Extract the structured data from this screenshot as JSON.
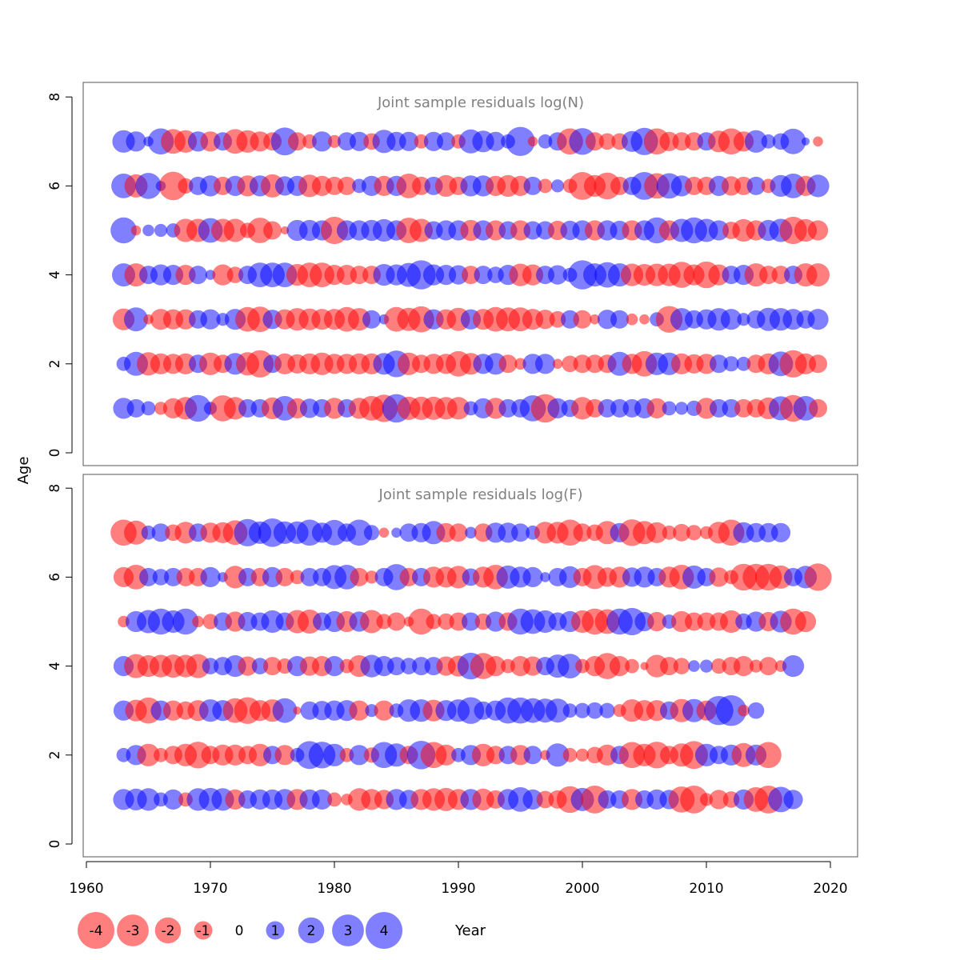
{
  "colors": {
    "positive": "#0000ff",
    "negative": "#ff0000",
    "frame": "#555555",
    "title": "#808080",
    "text": "#000000"
  },
  "ylabel": "Age",
  "xlabel": "Year",
  "x_ticks": [
    1960,
    1970,
    1980,
    1990,
    2000,
    2010,
    2020
  ],
  "y_ticks": [
    0,
    2,
    4,
    6,
    8
  ],
  "legend": {
    "values": [
      -4,
      -3,
      -2,
      -1,
      0,
      1,
      2,
      3,
      4
    ],
    "labels": [
      "-4",
      "-3",
      "-2",
      "-1",
      "0",
      "1",
      "2",
      "3",
      "4"
    ]
  },
  "chart_data": [
    {
      "type": "scatter",
      "title": "Joint sample residuals log(N)",
      "xlim": [
        1960,
        2022
      ],
      "ylim": [
        0,
        8
      ],
      "ages": [
        1,
        2,
        3,
        4,
        5,
        6,
        7
      ],
      "years": [
        1963,
        1964,
        1965,
        1966,
        1967,
        1968,
        1969,
        1970,
        1971,
        1972,
        1973,
        1974,
        1975,
        1976,
        1977,
        1978,
        1979,
        1980,
        1981,
        1982,
        1983,
        1984,
        1985,
        1986,
        1987,
        1988,
        1989,
        1990,
        1991,
        1992,
        1993,
        1994,
        1995,
        1996,
        1997,
        1998,
        1999,
        2000,
        2001,
        2002,
        2003,
        2004,
        2005,
        2006,
        2007,
        2008,
        2009,
        2010,
        2011,
        2012,
        2013,
        2014,
        2015,
        2016,
        2017,
        2018,
        2019
      ],
      "residuals": {
        "7": [
          1.5,
          1.2,
          0.3,
          2.0,
          -1.8,
          -1.5,
          1.2,
          -1.2,
          1.0,
          -1.8,
          -1.5,
          -1.2,
          -1.0,
          2.3,
          -1.0,
          -0.6,
          1.2,
          -0.5,
          1.0,
          1.1,
          -0.8,
          1.6,
          1.1,
          1.1,
          -0.6,
          1.1,
          1.0,
          -0.6,
          1.7,
          1.4,
          1.1,
          0.6,
          2.5,
          -0.3,
          0.6,
          1.0,
          -2.0,
          2.1,
          -1.0,
          -0.8,
          -0.8,
          1.3,
          2.2,
          -2.0,
          -1.1,
          -1.0,
          -1.0,
          1.0,
          -1.4,
          -2.0,
          -1.2,
          1.5,
          0.6,
          0.8,
          1.9,
          0.2,
          -0.3
        ],
        "6": [
          1.8,
          -1.6,
          2.0,
          0.3,
          -2.4,
          -0.7,
          1.0,
          1.3,
          -1.0,
          1.2,
          -1.3,
          1.3,
          -1.6,
          1.1,
          1.2,
          -1.5,
          -1.2,
          -1.0,
          -1.0,
          0.6,
          1.2,
          -1.2,
          1.2,
          -1.8,
          -1.0,
          1.0,
          -1.4,
          -1.0,
          1.3,
          1.3,
          -1.2,
          -1.4,
          -1.2,
          1.0,
          -0.6,
          0.5,
          -0.6,
          -2.3,
          -1.4,
          -2.1,
          -1.0,
          1.0,
          2.3,
          -1.9,
          1.9,
          1.3,
          -1.0,
          -1.0,
          1.2,
          -1.1,
          -1.0,
          1.0,
          -0.6,
          1.4,
          1.8,
          -1.2,
          1.5
        ],
        "5": [
          2.0,
          -0.3,
          0.4,
          0.5,
          0.6,
          -1.6,
          -1.6,
          1.8,
          -1.6,
          -1.6,
          -0.7,
          -1.9,
          -1.0,
          -0.2,
          1.3,
          1.3,
          1.2,
          -2.2,
          1.2,
          1.2,
          1.3,
          1.5,
          1.2,
          -1.9,
          -1.6,
          1.0,
          1.2,
          1.2,
          -1.3,
          1.2,
          -1.2,
          1.0,
          -1.2,
          1.0,
          1.0,
          -1.1,
          1.1,
          1.2,
          -1.2,
          1.2,
          1.1,
          -1.2,
          1.2,
          2.0,
          -1.2,
          1.6,
          2.0,
          1.6,
          1.2,
          -0.9,
          -1.5,
          -1.2,
          1.3,
          1.6,
          -2.2,
          -1.5,
          -1.2
        ],
        "4": [
          1.6,
          -1.6,
          1.0,
          1.3,
          1.2,
          -1.2,
          1.0,
          0.3,
          -1.3,
          -0.8,
          1.0,
          1.8,
          1.8,
          1.8,
          -1.4,
          -1.8,
          -1.8,
          -1.2,
          -1.2,
          -1.0,
          -1.0,
          1.4,
          1.3,
          1.7,
          2.5,
          1.3,
          1.2,
          1.1,
          -1.0,
          1.0,
          0.8,
          1.2,
          -1.5,
          -1.3,
          1.0,
          1.1,
          0.6,
          2.5,
          1.6,
          1.9,
          1.6,
          -1.5,
          -1.4,
          -1.5,
          -1.5,
          -2.0,
          -1.3,
          -2.1,
          -1.3,
          1.0,
          1.2,
          -1.6,
          -1.0,
          -1.0,
          1.0,
          -1.6,
          -1.6
        ],
        "3": [
          -1.4,
          1.7,
          -0.3,
          -1.3,
          -1.2,
          -1.2,
          1.0,
          1.2,
          0.5,
          1.3,
          -1.8,
          -1.9,
          1.1,
          -1.2,
          -1.5,
          -1.4,
          -1.3,
          -1.3,
          -1.8,
          -1.5,
          1.0,
          0.3,
          -1.8,
          -1.6,
          -2.0,
          1.2,
          -1.2,
          -1.6,
          1.2,
          -1.3,
          -1.8,
          -1.7,
          -1.7,
          -1.3,
          -1.1,
          -0.8,
          1.0,
          -1.0,
          -0.3,
          1.1,
          1.0,
          -0.4,
          -0.3,
          0.6,
          -2.1,
          1.5,
          1.0,
          1.2,
          1.5,
          1.3,
          0.5,
          1.0,
          1.6,
          1.5,
          1.3,
          1.0,
          1.3
        ],
        "2": [
          0.6,
          1.7,
          -1.6,
          -1.3,
          -1.2,
          -1.3,
          1.0,
          -1.5,
          -1.0,
          1.4,
          -1.6,
          -2.2,
          1.0,
          -1.3,
          -1.1,
          -1.3,
          -1.5,
          -1.2,
          -1.2,
          -1.3,
          -1.3,
          1.4,
          2.1,
          -1.5,
          -1.0,
          -1.2,
          -1.2,
          -1.9,
          -1.4,
          1.2,
          1.4,
          -1.0,
          -0.4,
          1.2,
          1.2,
          -0.3,
          -0.8,
          -1.0,
          -1.0,
          -1.0,
          1.7,
          -1.2,
          -1.9,
          1.5,
          1.5,
          -1.3,
          -1.1,
          -1.2,
          1.0,
          0.7,
          0.6,
          -1.0,
          -1.3,
          1.8,
          -2.2,
          -1.3,
          -1.0
        ],
        "1": [
          1.3,
          1.0,
          0.6,
          -0.5,
          -1.2,
          -1.5,
          2.1,
          0.5,
          -2.0,
          -1.5,
          1.0,
          1.0,
          -1.4,
          1.8,
          -1.2,
          1.1,
          1.0,
          -1.3,
          1.0,
          -1.3,
          -1.8,
          -2.2,
          2.4,
          -1.6,
          -1.6,
          -1.6,
          -1.5,
          -1.5,
          0.6,
          1.2,
          -1.3,
          1.0,
          1.0,
          2.0,
          -2.4,
          1.2,
          0.9,
          -1.5,
          -1.0,
          1.0,
          1.0,
          1.0,
          1.2,
          -1.2,
          0.6,
          0.5,
          0.7,
          -1.3,
          1.0,
          1.0,
          -1.0,
          -1.0,
          -1.4,
          1.7,
          -2.1,
          1.8,
          -1.0
        ]
      }
    },
    {
      "type": "scatter",
      "title": "Joint sample residuals log(F)",
      "xlim": [
        1960,
        2022
      ],
      "ylim": [
        0,
        8
      ],
      "ages": [
        1,
        2,
        3,
        4,
        5,
        6,
        7
      ],
      "years": [
        1963,
        1964,
        1965,
        1966,
        1967,
        1968,
        1969,
        1970,
        1971,
        1972,
        1973,
        1974,
        1975,
        1976,
        1977,
        1978,
        1979,
        1980,
        1981,
        1982,
        1983,
        1984,
        1985,
        1986,
        1987,
        1988,
        1989,
        1990,
        1991,
        1992,
        1993,
        1994,
        1995,
        1996,
        1997,
        1998,
        1999,
        2000,
        2001,
        2002,
        2003,
        2004,
        2005,
        2006,
        2007,
        2008,
        2009,
        2010,
        2011,
        2012,
        2013,
        2014,
        2015,
        2016,
        2017,
        2018,
        2019
      ],
      "residuals": {
        "7": [
          -2.0,
          -1.7,
          0.6,
          1.0,
          -0.8,
          -1.4,
          1.0,
          -1.2,
          -1.3,
          -1.8,
          2.2,
          1.5,
          2.4,
          1.5,
          1.5,
          2.0,
          1.2,
          1.9,
          1.0,
          2.0,
          0.7,
          -0.3,
          0.3,
          1.0,
          1.1,
          1.6,
          -1.1,
          -1.0,
          0.4,
          -1.0,
          1.2,
          1.2,
          1.0,
          0.6,
          -1.4,
          -1.4,
          -2.0,
          -1.0,
          -0.8,
          -1.6,
          1.1,
          -2.1,
          -1.6,
          -1.3,
          -0.6,
          -0.9,
          -0.7,
          -0.5,
          -1.4,
          -2.0,
          1.3,
          1.1,
          1.1,
          1.1
        ],
        "6": [
          -1.2,
          -1.8,
          1.0,
          0.8,
          1.0,
          -1.0,
          -1.0,
          1.2,
          0.3,
          -1.5,
          1.0,
          -1.0,
          1.2,
          -1.0,
          -0.6,
          1.0,
          1.0,
          1.7,
          1.8,
          -1.0,
          -0.5,
          1.0,
          2.0,
          -1.0,
          1.0,
          -1.3,
          -1.3,
          -1.5,
          0.9,
          -1.3,
          -1.8,
          1.6,
          1.3,
          1.2,
          0.3,
          1.0,
          1.4,
          -1.0,
          -1.7,
          -1.1,
          -1.3,
          1.1,
          1.3,
          1.0,
          -1.3,
          -1.8,
          1.6,
          1.0,
          -1.1,
          -0.6,
          -2.1,
          -2.1,
          -2.1,
          -1.6,
          1.0,
          1.5,
          -2.2
        ],
        "5": [
          -0.4,
          1.3,
          1.6,
          2.0,
          1.5,
          2.0,
          -0.4,
          -0.7,
          1.0,
          -1.2,
          1.1,
          1.0,
          1.5,
          1.0,
          -1.6,
          -1.7,
          1.0,
          1.3,
          -1.3,
          1.2,
          -1.6,
          -0.7,
          -1.0,
          -0.3,
          -2.0,
          -0.7,
          -0.8,
          -1.0,
          1.0,
          -0.8,
          1.2,
          -1.0,
          2.0,
          1.8,
          1.5,
          1.0,
          1.3,
          -1.5,
          -2.0,
          -1.8,
          2.0,
          2.2,
          1.1,
          -1.1,
          0.6,
          -1.3,
          -1.0,
          -1.0,
          -1.0,
          -1.5,
          0.8,
          1.2,
          -1.1,
          1.4,
          -2.0,
          -1.3
        ],
        "4": [
          1.2,
          -1.7,
          -1.4,
          -1.5,
          -1.6,
          -1.5,
          -1.7,
          0.8,
          1.0,
          1.4,
          -1.1,
          0.8,
          -1.0,
          -0.7,
          1.2,
          -1.1,
          -1.2,
          1.2,
          -0.6,
          -1.4,
          1.5,
          1.2,
          1.0,
          0.8,
          1.0,
          1.0,
          -1.1,
          -1.3,
          2.1,
          -2.0,
          -1.2,
          -0.6,
          -1.2,
          -1.1,
          1.0,
          1.6,
          1.8,
          -0.6,
          -1.2,
          -2.0,
          -1.2,
          -0.6,
          -0.2,
          -1.5,
          -1.0,
          -0.8,
          0.4,
          0.5,
          -0.7,
          -1.0,
          -1.2,
          -0.5,
          -1.0,
          -0.4,
          1.4
        ],
        "3": [
          1.2,
          -1.4,
          -2.0,
          1.2,
          -1.2,
          -1.0,
          -1.3,
          1.5,
          1.3,
          -1.8,
          -2.1,
          -1.3,
          -1.5,
          1.8,
          -0.2,
          1.0,
          1.1,
          1.2,
          1.3,
          -1.2,
          0.5,
          -1.2,
          0.6,
          1.5,
          1.5,
          -1.4,
          1.3,
          1.5,
          2.1,
          1.0,
          1.2,
          2.0,
          2.0,
          1.8,
          1.7,
          1.7,
          0.6,
          0.7,
          0.8,
          0.7,
          -0.5,
          -1.5,
          -1.3,
          -1.3,
          1.0,
          -1.6,
          1.6,
          -1.2,
          2.5,
          2.8,
          -0.4,
          0.8
        ],
        "2": [
          0.6,
          1.2,
          -1.5,
          -0.6,
          -1.0,
          -1.5,
          -2.1,
          -1.0,
          -1.3,
          -1.3,
          -1.0,
          -1.5,
          1.0,
          -1.2,
          0.6,
          2.3,
          2.1,
          1.5,
          -0.6,
          1.2,
          -0.7,
          2.0,
          1.6,
          -1.0,
          2.4,
          -2.0,
          -1.3,
          0.6,
          1.2,
          -1.5,
          -1.0,
          1.0,
          -1.2,
          1.0,
          -0.3,
          1.6,
          -0.6,
          -0.5,
          -0.8,
          -1.3,
          1.0,
          -2.0,
          -1.5,
          -2.1,
          -1.0,
          -1.6,
          -2.3,
          1.5,
          1.0,
          1.3,
          -1.7,
          1.3,
          -2.0
        ],
        "1": [
          1.3,
          1.4,
          1.5,
          0.6,
          1.2,
          -0.6,
          1.5,
          1.6,
          1.5,
          -1.2,
          1.0,
          1.2,
          1.2,
          1.3,
          -1.3,
          1.2,
          1.2,
          -0.6,
          -0.4,
          -1.5,
          -1.3,
          -1.1,
          1.3,
          1.1,
          -1.3,
          -1.5,
          -1.6,
          -1.3,
          1.3,
          -1.4,
          -1.0,
          1.3,
          1.8,
          1.2,
          -0.9,
          -1.0,
          -2.1,
          1.6,
          -2.3,
          1.0,
          1.0,
          -1.3,
          1.0,
          1.2,
          1.1,
          -2.0,
          -2.3,
          -0.5,
          -1.1,
          -0.8,
          1.2,
          -1.8,
          -2.3,
          1.9,
          1.1
        ]
      }
    }
  ]
}
